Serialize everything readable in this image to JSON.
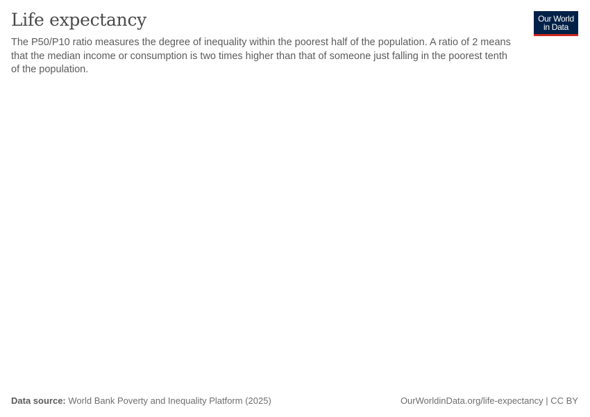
{
  "header": {
    "title": "Life expectancy",
    "subtitle": "The P50/P10 ratio measures the degree of inequality within the poorest half of the population. A ratio of 2 means that the median income or consumption is two times higher than that of someone just falling in the poorest tenth of the population."
  },
  "logo": {
    "line1": "Our World",
    "line2": "in Data",
    "bg_color": "#002147",
    "accent_color": "#ce261e"
  },
  "footer": {
    "source_label": "Data source:",
    "source_text": "World Bank Poverty and Inequality Platform (2025)",
    "url": "OurWorldinData.org/life-expectancy",
    "separator": "|",
    "license": "CC BY"
  },
  "chart_data": {
    "type": "line",
    "title": "Life expectancy",
    "series": []
  }
}
